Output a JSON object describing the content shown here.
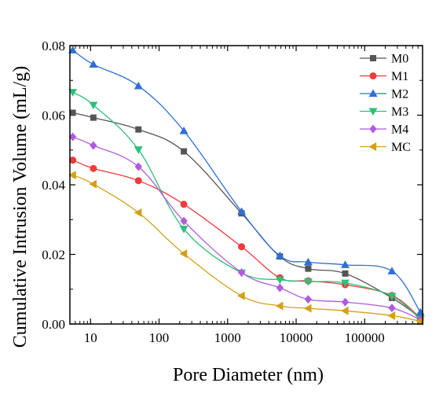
{
  "chart_data": {
    "type": "line",
    "xscale": "log",
    "xlabel": "Pore Diameter (nm)",
    "ylabel": "Cumulative Intrusion Volume (mL/g)",
    "xlim": [
      5,
      700000
    ],
    "ylim": [
      0,
      0.08
    ],
    "xticks": [
      {
        "value": 10,
        "label": "10"
      },
      {
        "value": 100,
        "label": "100"
      },
      {
        "value": 1000,
        "label": "1000"
      },
      {
        "value": 10000,
        "label": "10000"
      },
      {
        "value": 100000,
        "label": "100000"
      }
    ],
    "yticks": [
      {
        "value": 0,
        "label": "0.00"
      },
      {
        "value": 0.02,
        "label": "0.02"
      },
      {
        "value": 0.04,
        "label": "0.04"
      },
      {
        "value": 0.06,
        "label": "0.06"
      },
      {
        "value": 0.08,
        "label": "0.08"
      }
    ],
    "grid": false,
    "legend_position": "top-right",
    "series": [
      {
        "name": "M0",
        "color": "#555555",
        "marker": "square",
        "x": [
          5.5,
          11,
          50,
          230,
          1600,
          5800,
          15000,
          52000,
          250000,
          650000
        ],
        "y": [
          0.0607,
          0.0593,
          0.0559,
          0.0496,
          0.0318,
          0.0194,
          0.0159,
          0.0145,
          0.0075,
          0.0018
        ]
      },
      {
        "name": "M1",
        "color": "#ee3b3b",
        "marker": "circle",
        "x": [
          5.5,
          11,
          50,
          230,
          1600,
          5800,
          15000,
          52000,
          250000,
          650000
        ],
        "y": [
          0.0471,
          0.0447,
          0.0412,
          0.0344,
          0.0222,
          0.0133,
          0.0124,
          0.0113,
          0.0082,
          0.0017
        ]
      },
      {
        "name": "M2",
        "color": "#2f6fd6",
        "marker": "triangle-up",
        "x": [
          5.5,
          11,
          50,
          230,
          1600,
          5800,
          15000,
          52000,
          250000,
          650000
        ],
        "y": [
          0.0787,
          0.0746,
          0.0684,
          0.0555,
          0.0323,
          0.0196,
          0.0178,
          0.017,
          0.0152,
          0.0034
        ]
      },
      {
        "name": "M3",
        "color": "#2fbf7a",
        "marker": "triangle-down",
        "x": [
          5.5,
          11,
          50,
          230,
          1600,
          5800,
          15000,
          52000,
          250000,
          650000
        ],
        "y": [
          0.0666,
          0.0629,
          0.0501,
          0.0273,
          0.0147,
          0.0127,
          0.0122,
          0.0118,
          0.008,
          0.0013
        ]
      },
      {
        "name": "M4",
        "color": "#b05bdc",
        "marker": "diamond",
        "x": [
          5.5,
          11,
          50,
          230,
          1600,
          5800,
          15000,
          52000,
          250000,
          650000
        ],
        "y": [
          0.0538,
          0.0513,
          0.0452,
          0.0296,
          0.0148,
          0.0104,
          0.0071,
          0.0063,
          0.0046,
          0.0012
        ]
      },
      {
        "name": "MC",
        "color": "#d4a017",
        "marker": "triangle-left",
        "x": [
          5.5,
          11,
          50,
          230,
          1600,
          5800,
          15000,
          52000,
          250000,
          650000
        ],
        "y": [
          0.0428,
          0.0402,
          0.032,
          0.0202,
          0.0081,
          0.0052,
          0.0045,
          0.0038,
          0.0024,
          0.0008
        ]
      }
    ]
  }
}
